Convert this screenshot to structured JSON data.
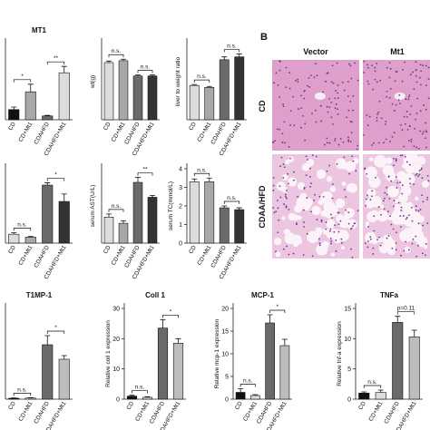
{
  "chart_data": [
    {
      "type": "bar",
      "title": "MT1",
      "categories": [
        "CD",
        "CD+Mt1",
        "CDAHFD",
        "CDAHFD+Mt1"
      ],
      "values": [
        0.8,
        2.2,
        0.3,
        3.7
      ],
      "errors": [
        0.2,
        0.6,
        0.05,
        0.5
      ],
      "colors": [
        "#111111",
        "#a8a8a8",
        "#6a6a6a",
        "#dcdcdc"
      ],
      "ylim": [
        0,
        6
      ],
      "annotations": [
        "*",
        "**"
      ]
    },
    {
      "type": "bar",
      "ylabel": "wt(g)",
      "categories": [
        "CD",
        "CD+Mt1",
        "CDAHFD",
        "CDAHFD+Mt1"
      ],
      "values": [
        30,
        31,
        23,
        23
      ],
      "errors": [
        0.8,
        0.8,
        0.5,
        0.5
      ],
      "colors": [
        "#dcdcdc",
        "#a8a8a8",
        "#6a6a6a",
        "#333333"
      ],
      "ylim": [
        0,
        40
      ],
      "annotations": [
        "n.s.",
        "n.s."
      ]
    },
    {
      "type": "bar",
      "ylabel": "liver to weight ratio",
      "categories": [
        "CD",
        "CD+Mt1",
        "CDAHFD",
        "CDAHFD+Mt1"
      ],
      "values": [
        0.036,
        0.034,
        0.063,
        0.066
      ],
      "errors": [
        0.001,
        0.001,
        0.003,
        0.003
      ],
      "colors": [
        "#dcdcdc",
        "#a8a8a8",
        "#6a6a6a",
        "#333333"
      ],
      "ylim": [
        0,
        0.08
      ],
      "annotations": [
        "n.s.",
        "n.s."
      ]
    },
    {
      "type": "bar",
      "categories": [
        "CD",
        "CD+Mt1",
        "CDAHFD",
        "CDAHFD+Mt1"
      ],
      "values": [
        1.2,
        0.8,
        7.8,
        5.6
      ],
      "errors": [
        0.2,
        0.1,
        0.3,
        1.0
      ],
      "colors": [
        "#dcdcdc",
        "#a8a8a8",
        "#6a6a6a",
        "#333333"
      ],
      "ylim": [
        0,
        10
      ],
      "annotations": [
        "n.s.",
        "*"
      ]
    },
    {
      "type": "bar",
      "ylabel": "serum AST(U/L)",
      "categories": [
        "CD",
        "CD+Mt1",
        "CDAHFD",
        "CDAHFD+Mt1"
      ],
      "values": [
        210,
        160,
        490,
        370
      ],
      "errors": [
        25,
        20,
        40,
        15
      ],
      "colors": [
        "#dcdcdc",
        "#a8a8a8",
        "#6a6a6a",
        "#333333"
      ],
      "ylim": [
        0,
        600
      ],
      "annotations": [
        "n.s.",
        "**"
      ]
    },
    {
      "type": "bar",
      "ylabel": "serum TC(mmol/L)",
      "categories": [
        "CD",
        "CD+Mt1",
        "CDAHFD",
        "CDAHFD+Mt1"
      ],
      "values": [
        3.3,
        3.3,
        1.9,
        1.8
      ],
      "errors": [
        0.15,
        0.2,
        0.1,
        0.1
      ],
      "colors": [
        "#dcdcdc",
        "#a8a8a8",
        "#6a6a6a",
        "#333333"
      ],
      "ylim": [
        0,
        4
      ],
      "yticks": [
        0,
        1,
        2,
        3,
        4
      ],
      "annotations": [
        "n.s.",
        "n.s."
      ]
    },
    {
      "type": "bar",
      "title": "T1MP-1",
      "categories": [
        "CD",
        "CD+Mt1",
        "CDAHFD",
        "CDAHFD+Mt1"
      ],
      "values": [
        0.5,
        0.6,
        30,
        22
      ],
      "errors": [
        0.2,
        0.2,
        5,
        2
      ],
      "colors": [
        "#111111",
        "#dcdcdc",
        "#6a6a6a",
        "#bdbdbd"
      ],
      "ylim": [
        0,
        50
      ],
      "annotations": [
        "n.s.",
        "*"
      ]
    },
    {
      "type": "bar",
      "title": "Coll 1",
      "ylabel": "Relative coll 1 expression",
      "categories": [
        "CD",
        "CD+Mt1",
        "CDAHFD",
        "CDAHFD+Mt1"
      ],
      "values": [
        1,
        0.6,
        23.5,
        18.5
      ],
      "errors": [
        0.3,
        0.2,
        2.8,
        1.5
      ],
      "colors": [
        "#111111",
        "#dcdcdc",
        "#6a6a6a",
        "#bdbdbd"
      ],
      "ylim": [
        0,
        30
      ],
      "yticks": [
        0,
        10,
        20,
        30
      ],
      "annotations": [
        "n.s.",
        "*"
      ]
    },
    {
      "type": "bar",
      "title": "MCP-1",
      "ylabel": "Relative mcp-1 expression",
      "categories": [
        "CD",
        "CD+Mt1",
        "CDAHFD",
        "CDAHFD+Mt1"
      ],
      "values": [
        1.5,
        0.8,
        16.8,
        11.8
      ],
      "errors": [
        0.8,
        0.2,
        1.8,
        1.4
      ],
      "colors": [
        "#111111",
        "#dcdcdc",
        "#6a6a6a",
        "#bdbdbd"
      ],
      "ylim": [
        0,
        20
      ],
      "yticks": [
        0,
        5,
        10,
        15,
        20
      ],
      "annotations": [
        "n.s.",
        "*"
      ]
    },
    {
      "type": "bar",
      "title": "TNFa",
      "ylabel": "Relative tnf-a expression",
      "categories": [
        "CD",
        "CD+Mt1",
        "CDAHFD",
        "CDAHFD+Mt1"
      ],
      "values": [
        1,
        1.1,
        12.7,
        10.3
      ],
      "errors": [
        0.2,
        0.4,
        1.0,
        1.1
      ],
      "colors": [
        "#111111",
        "#dcdcdc",
        "#6a6a6a",
        "#bdbdbd"
      ],
      "ylim": [
        0,
        15
      ],
      "yticks": [
        0,
        5,
        10,
        15
      ],
      "annotations": [
        "n.s.",
        "p=0.11"
      ]
    }
  ],
  "panel_b": {
    "label": "B",
    "columns": [
      "Vector",
      "Mt1"
    ],
    "rows": [
      "CD",
      "CDAA/HFD"
    ]
  }
}
